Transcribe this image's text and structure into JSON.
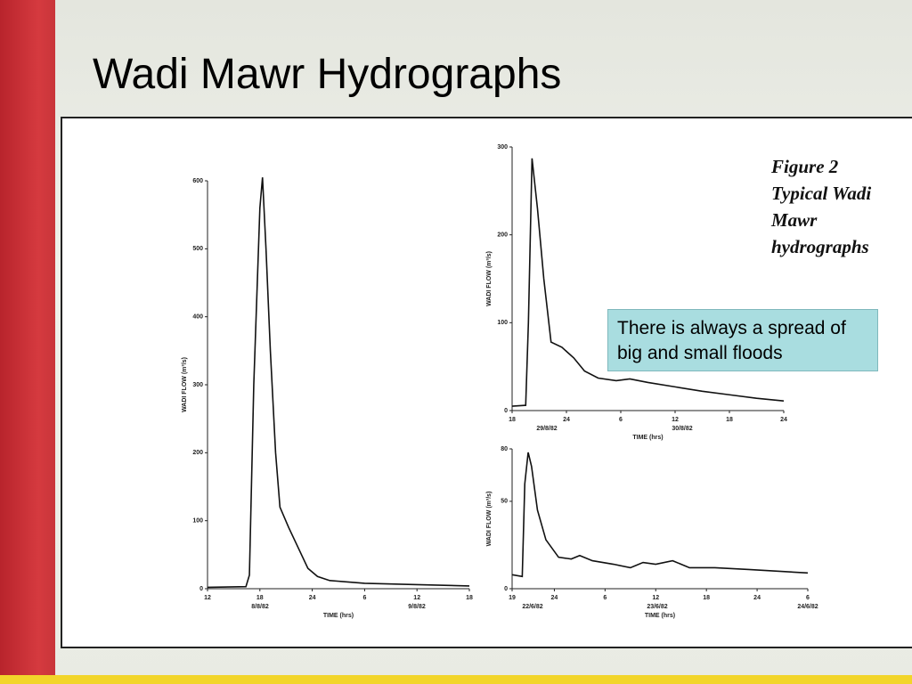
{
  "title": "Wadi Mawr Hydrographs",
  "caption": [
    "Figure 2",
    "Typical Wadi",
    "Mawr",
    "hydrographs"
  ],
  "callout": "There is always a spread of big and small floods",
  "chart_data": [
    {
      "type": "line",
      "xlabel": "TIME (hrs)",
      "ylabel": "WADI FLOW (m³/s)",
      "color": "#111111",
      "x": [
        0,
        4.4,
        4.8,
        5.3,
        6.0,
        6.3,
        6.7,
        7.2,
        7.8,
        8.3,
        9.3,
        10.4,
        11.5,
        12.6,
        14,
        18,
        24,
        30
      ],
      "values": [
        2,
        3,
        20,
        300,
        560,
        605,
        500,
        350,
        200,
        120,
        90,
        60,
        30,
        18,
        12,
        8,
        6,
        4
      ],
      "xlim": [
        0,
        30
      ],
      "ylim": [
        0,
        600
      ],
      "xticks": [
        {
          "value": 0,
          "label": "12"
        },
        {
          "value": 6,
          "label": "18"
        },
        {
          "value": 12,
          "label": "24"
        },
        {
          "value": 18,
          "label": "6"
        },
        {
          "value": 24,
          "label": "12"
        },
        {
          "value": 30,
          "label": "18"
        }
      ],
      "yticks": [
        0,
        100,
        200,
        300,
        400,
        500,
        600
      ],
      "annotations": [
        "8/8/82",
        "9/8/82"
      ]
    },
    {
      "type": "line",
      "xlabel": "TIME (hrs)",
      "ylabel": "WADI FLOW (m³/s)",
      "color": "#111111",
      "x": [
        0,
        1.5,
        1.8,
        2.2,
        2.8,
        3.5,
        4.3,
        5.5,
        6.8,
        8,
        9.5,
        11.5,
        13,
        15,
        18,
        21,
        24,
        27,
        30
      ],
      "values": [
        5,
        6,
        100,
        287,
        230,
        150,
        78,
        72,
        60,
        45,
        37,
        34,
        36,
        32,
        27,
        22,
        18,
        14,
        11
      ],
      "xlim": [
        0,
        30
      ],
      "ylim": [
        0,
        300
      ],
      "xticks": [
        {
          "value": 0,
          "label": "18"
        },
        {
          "value": 6,
          "label": "24"
        },
        {
          "value": 12,
          "label": "6"
        },
        {
          "value": 18,
          "label": "12"
        },
        {
          "value": 24,
          "label": "18"
        },
        {
          "value": 30,
          "label": "24"
        }
      ],
      "yticks": [
        0,
        100,
        200,
        300
      ],
      "annotations": [
        "29/8/82",
        "30/8/82"
      ]
    },
    {
      "type": "line",
      "xlabel": "TIME (hrs)",
      "ylabel": "WADI FLOW (m³/s)",
      "color": "#111111",
      "x": [
        0,
        1.2,
        1.5,
        1.9,
        2.3,
        3,
        4,
        5.5,
        7,
        8,
        9.5,
        12,
        14,
        15.5,
        17,
        19,
        21,
        24,
        28,
        35
      ],
      "values": [
        8,
        7,
        60,
        78,
        70,
        45,
        28,
        18,
        17,
        19,
        16,
        14,
        12,
        15,
        14,
        16,
        12,
        12,
        11,
        9
      ],
      "xlim": [
        0,
        35
      ],
      "ylim": [
        0,
        80
      ],
      "xticks": [
        {
          "value": 0,
          "label": "19"
        },
        {
          "value": 5,
          "label": "24"
        },
        {
          "value": 11,
          "label": "6"
        },
        {
          "value": 17,
          "label": "12"
        },
        {
          "value": 23,
          "label": "18"
        },
        {
          "value": 29,
          "label": "24"
        },
        {
          "value": 35,
          "label": "6"
        }
      ],
      "yticks": [
        0,
        50,
        80
      ],
      "annotations": [
        "22/6/82",
        "23/6/82",
        "24/6/82"
      ]
    }
  ]
}
